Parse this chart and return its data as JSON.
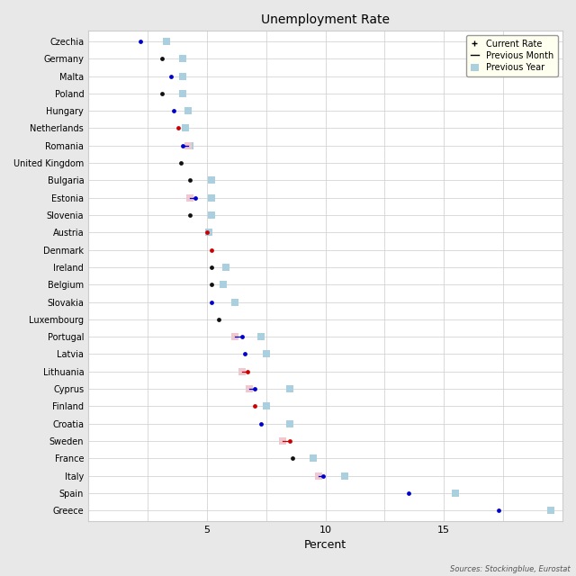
{
  "title": "Unemployment Rate",
  "xlabel": "Percent",
  "source": "Sources: Stockingblue, Eurostat",
  "countries": [
    "Czechia",
    "Germany",
    "Malta",
    "Poland",
    "Hungary",
    "Netherlands",
    "Romania",
    "United Kingdom",
    "Bulgaria",
    "Estonia",
    "Slovenia",
    "Austria",
    "Denmark",
    "Ireland",
    "Belgium",
    "Slovakia",
    "Luxembourg",
    "Portugal",
    "Latvia",
    "Lithuania",
    "Cyprus",
    "Finland",
    "Croatia",
    "Sweden",
    "France",
    "Italy",
    "Spain",
    "Greece"
  ],
  "current_rate": [
    2.2,
    3.1,
    3.5,
    3.1,
    3.6,
    3.8,
    4.0,
    3.9,
    4.3,
    4.5,
    4.3,
    5.0,
    5.2,
    5.2,
    5.2,
    5.2,
    5.5,
    6.5,
    6.6,
    6.7,
    7.0,
    7.0,
    7.3,
    8.5,
    8.6,
    9.9,
    13.5,
    17.3
  ],
  "current_colors": [
    "#0000cc",
    "#111111",
    "#0000cc",
    "#111111",
    "#0000cc",
    "#cc0000",
    "#0000cc",
    "#111111",
    "#111111",
    "#0000cc",
    "#111111",
    "#cc0000",
    "#cc0000",
    "#111111",
    "#111111",
    "#0000cc",
    "#111111",
    "#0000cc",
    "#0000cc",
    "#cc0000",
    "#0000cc",
    "#cc0000",
    "#0000cc",
    "#cc0000",
    "#111111",
    "#0000cc",
    "#0000cc",
    "#0000cc"
  ],
  "prev_month": [
    null,
    null,
    null,
    null,
    null,
    null,
    4.2,
    null,
    null,
    4.3,
    null,
    null,
    null,
    null,
    null,
    null,
    null,
    6.2,
    null,
    6.5,
    6.8,
    null,
    null,
    8.2,
    null,
    9.7,
    null,
    null
  ],
  "prev_year": [
    3.3,
    4.0,
    4.0,
    4.0,
    4.2,
    4.1,
    4.3,
    null,
    5.2,
    5.2,
    5.2,
    5.1,
    null,
    5.8,
    5.7,
    6.2,
    null,
    7.3,
    7.5,
    null,
    8.5,
    7.5,
    8.5,
    null,
    9.5,
    10.8,
    15.5,
    19.5
  ],
  "xlim": [
    0,
    20
  ],
  "xticks": [
    0,
    2.5,
    5.0,
    7.5,
    10.0,
    12.5,
    15.0,
    17.5,
    20.0
  ],
  "xtick_labels": [
    "",
    "",
    "5",
    "",
    "10",
    "",
    "15",
    "",
    ""
  ],
  "bg_color": "#e8e8e8",
  "plot_bg": "#ffffff",
  "grid_color": "#cccccc",
  "prev_year_color": "#aacfdf",
  "prev_month_color": "#f0c8d0"
}
